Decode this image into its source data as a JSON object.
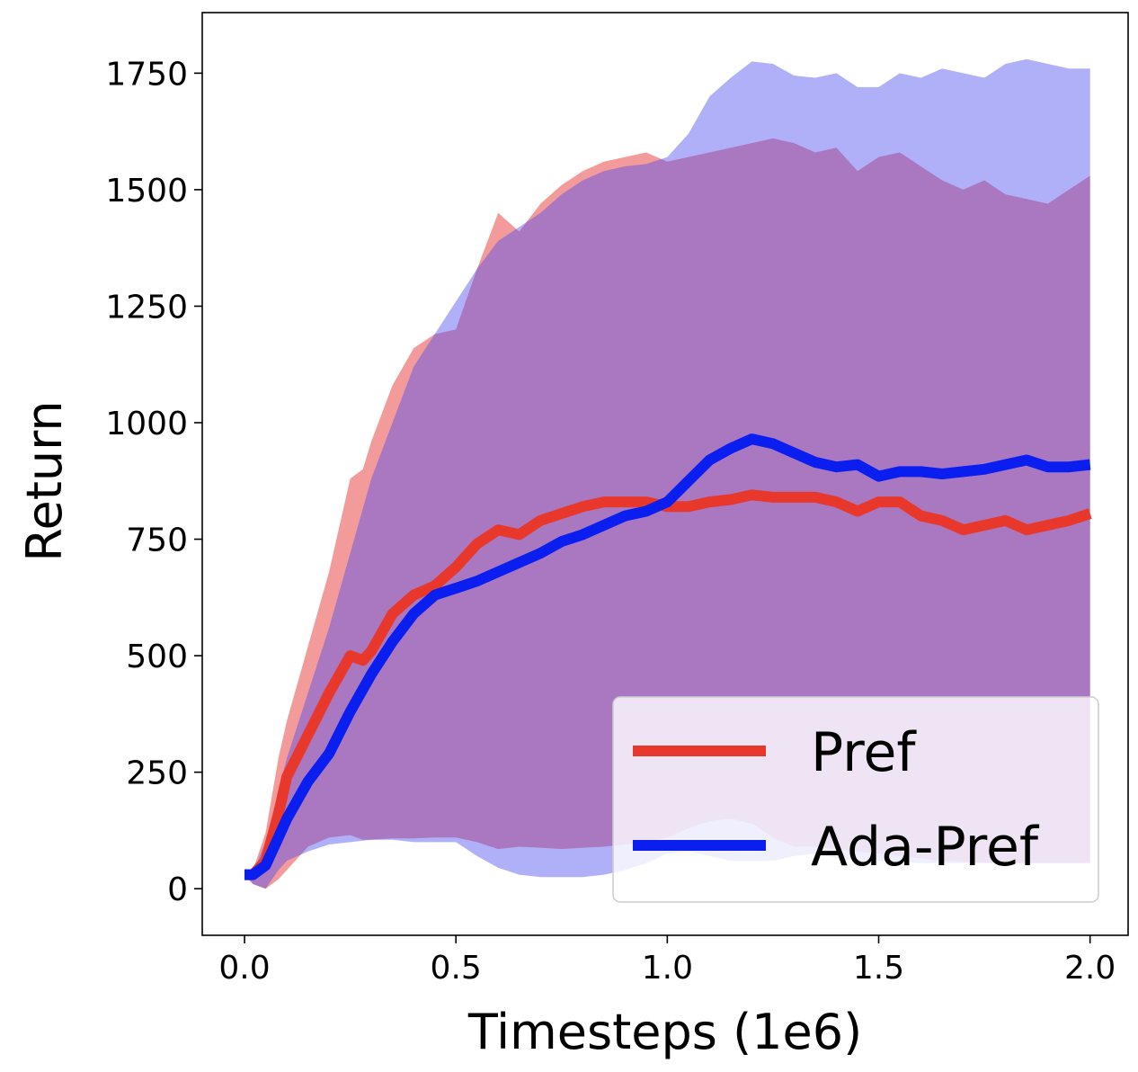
{
  "chart_data": {
    "type": "line",
    "xlabel": "Timesteps (1e6)",
    "ylabel": "Return",
    "xlim": [
      -0.1,
      2.09
    ],
    "ylim": [
      -100,
      1880
    ],
    "x_ticks": [
      0.0,
      0.5,
      1.0,
      1.5,
      2.0
    ],
    "x_tick_labels": [
      "0.0",
      "0.5",
      "1.0",
      "1.5",
      "2.0"
    ],
    "y_ticks": [
      0,
      250,
      500,
      750,
      1000,
      1250,
      1500,
      1750
    ],
    "y_tick_labels": [
      "0",
      "250",
      "500",
      "750",
      "1000",
      "1250",
      "1500",
      "1750"
    ],
    "grid": false,
    "legend_position": "lower-right",
    "series": [
      {
        "name": "Pref",
        "color": "#e8382c",
        "band_color": "#e8383880",
        "x": [
          0.0,
          0.02,
          0.05,
          0.08,
          0.1,
          0.15,
          0.2,
          0.25,
          0.28,
          0.3,
          0.35,
          0.4,
          0.45,
          0.5,
          0.55,
          0.6,
          0.65,
          0.7,
          0.75,
          0.8,
          0.85,
          0.9,
          0.95,
          1.0,
          1.05,
          1.1,
          1.15,
          1.2,
          1.25,
          1.3,
          1.35,
          1.4,
          1.45,
          1.5,
          1.55,
          1.6,
          1.65,
          1.7,
          1.75,
          1.8,
          1.85,
          1.9,
          1.95,
          2.0
        ],
        "mean": [
          30,
          30,
          60,
          160,
          240,
          330,
          420,
          500,
          490,
          510,
          590,
          630,
          650,
          690,
          740,
          770,
          760,
          790,
          805,
          820,
          830,
          830,
          830,
          820,
          820,
          830,
          835,
          845,
          840,
          840,
          840,
          830,
          810,
          830,
          830,
          800,
          790,
          770,
          780,
          790,
          770,
          780,
          790,
          805
        ],
        "upper": [
          30,
          40,
          120,
          280,
          360,
          520,
          680,
          880,
          900,
          960,
          1080,
          1160,
          1190,
          1200,
          1330,
          1450,
          1410,
          1470,
          1510,
          1540,
          1560,
          1570,
          1580,
          1560,
          1570,
          1580,
          1590,
          1600,
          1610,
          1600,
          1580,
          1590,
          1540,
          1570,
          1580,
          1550,
          1520,
          1500,
          1520,
          1490,
          1480,
          1470,
          1500,
          1530
        ],
        "lower": [
          30,
          10,
          0,
          20,
          40,
          90,
          110,
          115,
          105,
          105,
          108,
          108,
          110,
          110,
          100,
          85,
          90,
          88,
          85,
          88,
          90,
          95,
          100,
          110,
          130,
          145,
          150,
          140,
          110,
          90,
          90,
          85,
          80,
          75,
          70,
          65,
          60,
          58,
          56,
          55,
          55,
          55,
          55,
          55
        ]
      },
      {
        "name": "Ada-Pref",
        "color": "#0a1ef0",
        "band_color": "#4a4cf070",
        "x": [
          0.0,
          0.02,
          0.05,
          0.08,
          0.1,
          0.15,
          0.2,
          0.25,
          0.3,
          0.35,
          0.4,
          0.45,
          0.5,
          0.55,
          0.6,
          0.65,
          0.7,
          0.75,
          0.8,
          0.85,
          0.9,
          0.95,
          1.0,
          1.05,
          1.1,
          1.15,
          1.2,
          1.25,
          1.3,
          1.35,
          1.4,
          1.45,
          1.5,
          1.55,
          1.6,
          1.65,
          1.7,
          1.75,
          1.8,
          1.85,
          1.9,
          1.95,
          2.0
        ],
        "mean": [
          30,
          30,
          50,
          110,
          150,
          230,
          290,
          380,
          460,
          530,
          590,
          630,
          645,
          660,
          680,
          700,
          720,
          745,
          760,
          780,
          800,
          810,
          830,
          875,
          920,
          945,
          965,
          955,
          935,
          915,
          905,
          910,
          885,
          895,
          895,
          890,
          895,
          900,
          910,
          920,
          905,
          905,
          910
        ],
        "upper": [
          30,
          35,
          100,
          210,
          280,
          420,
          560,
          720,
          880,
          1000,
          1120,
          1190,
          1260,
          1330,
          1390,
          1420,
          1450,
          1490,
          1520,
          1540,
          1550,
          1555,
          1570,
          1620,
          1700,
          1740,
          1775,
          1770,
          1745,
          1740,
          1750,
          1720,
          1720,
          1750,
          1740,
          1760,
          1750,
          1740,
          1770,
          1780,
          1770,
          1760,
          1760
        ],
        "lower": [
          30,
          10,
          0,
          40,
          60,
          80,
          95,
          100,
          105,
          105,
          100,
          100,
          100,
          70,
          45,
          30,
          25,
          25,
          25,
          30,
          40,
          55,
          75,
          80,
          70,
          60,
          60,
          60,
          70,
          75,
          65,
          60,
          60,
          58,
          55,
          55,
          55,
          55,
          55,
          55,
          55,
          55,
          55
        ]
      }
    ]
  }
}
